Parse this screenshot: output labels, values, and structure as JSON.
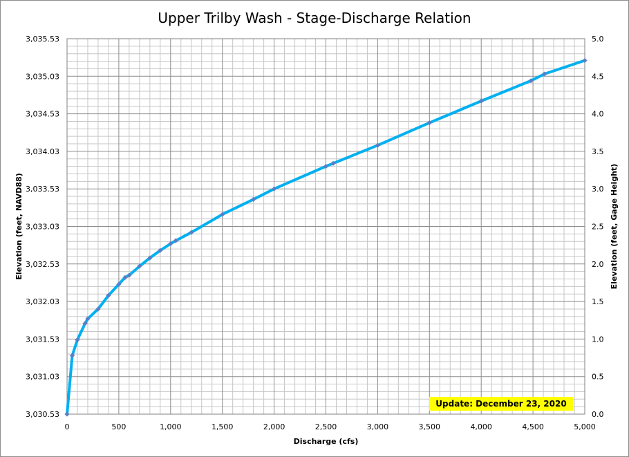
{
  "chart_data": {
    "type": "line",
    "title": "Upper Trilby Wash - Stage-Discharge Relation",
    "xlabel": "Discharge  (cfs)",
    "ylabel_left": "Elevation (feet, NAVD88)",
    "ylabel_right": "Elevation (feet, Gage Height)",
    "xlim": [
      0,
      5000
    ],
    "ylim_right": [
      0,
      5
    ],
    "ylim_left": [
      3030.53,
      3035.53
    ],
    "x_ticks": [
      0,
      500,
      1000,
      1500,
      2000,
      2500,
      3000,
      3500,
      4000,
      4500,
      5000
    ],
    "x_tick_labels": [
      "0",
      "500",
      "1,000",
      "1,500",
      "2,000",
      "2,500",
      "3,000",
      "3,500",
      "4,000",
      "4,500",
      "5,000"
    ],
    "y_left_tick_labels": [
      "3,030.53",
      "3,031.03",
      "3,031.53",
      "3,032.03",
      "3,032.53",
      "3,033.03",
      "3,033.53",
      "3,034.03",
      "3,034.53",
      "3,035.03",
      "3,035.53"
    ],
    "y_right_tick_labels": [
      "0.0",
      "0.5",
      "1.0",
      "1.5",
      "2.0",
      "2.5",
      "3.0",
      "3.5",
      "4.0",
      "4.5",
      "5.0"
    ],
    "grid": true,
    "series": [
      {
        "color": "#00b0f0",
        "marker_color": "#5b7fc4",
        "x": [
          0,
          50,
          100,
          175,
          200,
          300,
          400,
          500,
          560,
          600,
          700,
          800,
          900,
          1000,
          1050,
          1200,
          1500,
          1800,
          2000,
          2500,
          2570,
          3000,
          3500,
          4000,
          4480,
          4610,
          5000
        ],
        "y": [
          0,
          0.78,
          0.99,
          1.21,
          1.27,
          1.4,
          1.58,
          1.73,
          1.82,
          1.85,
          1.97,
          2.08,
          2.18,
          2.27,
          2.31,
          2.42,
          2.66,
          2.86,
          3.0,
          3.3,
          3.34,
          3.58,
          3.88,
          4.17,
          4.44,
          4.53,
          4.71
        ]
      }
    ]
  },
  "annotation": {
    "text": "Update: December 23, 2020",
    "background": "#ffff00"
  }
}
